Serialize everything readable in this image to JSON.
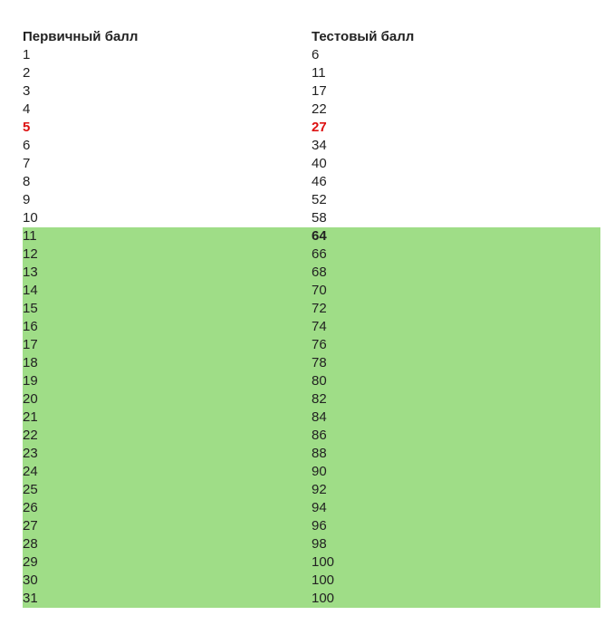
{
  "table": {
    "headers": [
      "Первичный балл",
      "Тестовый балл"
    ],
    "rows": [
      [
        "1",
        "6"
      ],
      [
        "2",
        "11"
      ],
      [
        "3",
        "17"
      ],
      [
        "4",
        "22"
      ],
      [
        "5",
        "27"
      ],
      [
        "6",
        "34"
      ],
      [
        "7",
        "40"
      ],
      [
        "8",
        "46"
      ],
      [
        "9",
        "52"
      ],
      [
        "10",
        "58"
      ],
      [
        "11",
        "64"
      ],
      [
        "12",
        "66"
      ],
      [
        "13",
        "68"
      ],
      [
        "14",
        "70"
      ],
      [
        "15",
        "72"
      ],
      [
        "16",
        "74"
      ],
      [
        "17",
        "76"
      ],
      [
        "18",
        "78"
      ],
      [
        "19",
        "80"
      ],
      [
        "20",
        "82"
      ],
      [
        "21",
        "84"
      ],
      [
        "22",
        "86"
      ],
      [
        "23",
        "88"
      ],
      [
        "24",
        "90"
      ],
      [
        "25",
        "92"
      ],
      [
        "26",
        "94"
      ],
      [
        "27",
        "96"
      ],
      [
        "28",
        "98"
      ],
      [
        "29",
        "100"
      ],
      [
        "30",
        "100"
      ],
      [
        "31",
        "100"
      ]
    ],
    "highlight_row_index": 4,
    "highlight_color": "#dd1111",
    "pass_start_row_index": 10,
    "pass_background_color": "#9fdd87",
    "bold_test_score_row_index": 10
  }
}
